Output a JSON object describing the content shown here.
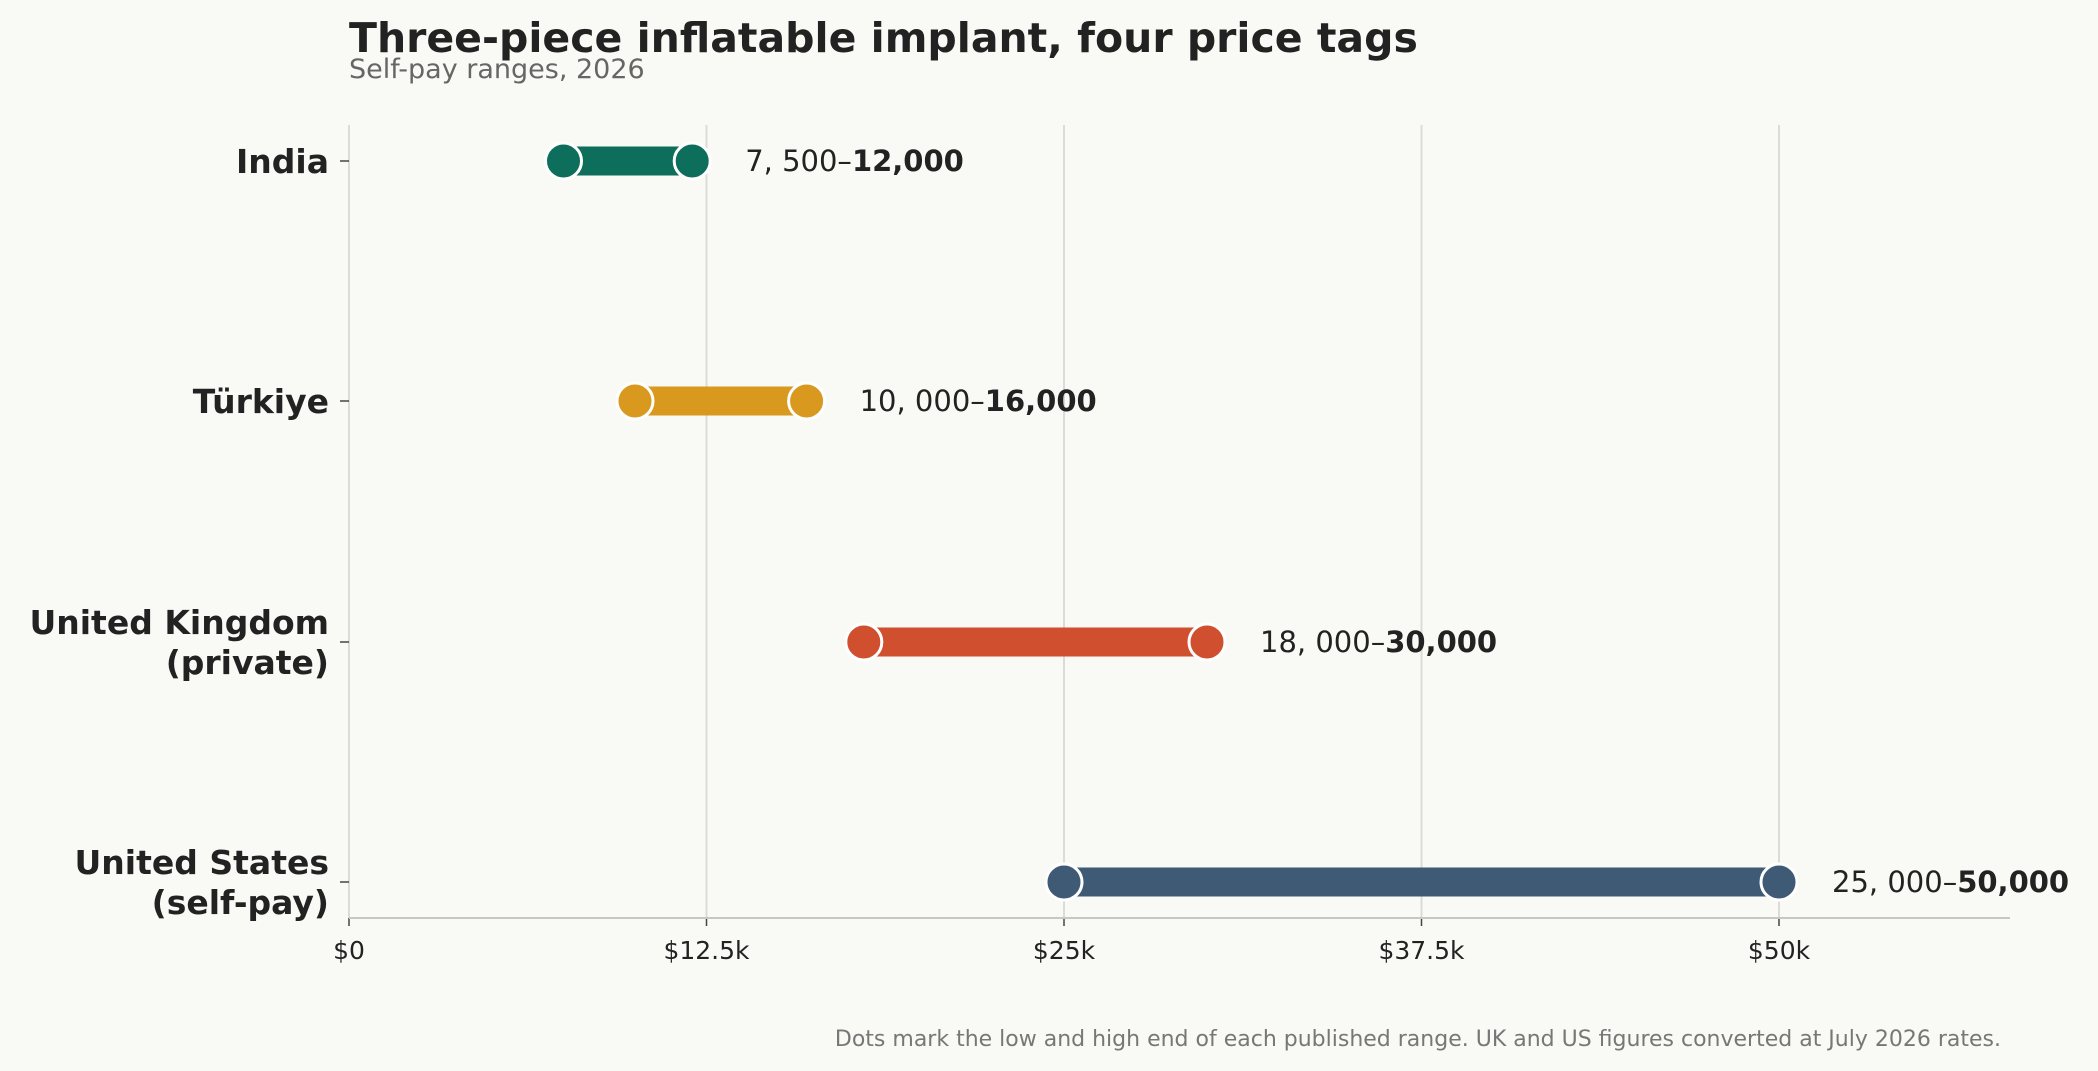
{
  "chart_data": {
    "type": "dumbbell",
    "title": "Three-piece inflatable implant, four price tags",
    "subtitle": "Self-pay ranges, 2026",
    "footnote": "Dots mark the low and high end of each published range. UK and US figures converted at July 2026 rates.",
    "xlim": [
      0,
      58000
    ],
    "xticks": [
      0,
      12500,
      25000,
      37500,
      50000
    ],
    "xtick_labels": [
      "$0",
      "$12.5k",
      "$25k",
      "$37.5k",
      "$50k"
    ],
    "grid": "vertical",
    "categories": [
      {
        "label": [
          "India"
        ],
        "low": 7500,
        "high": 12000,
        "low_label": "7, 500–",
        "high_label": "12,000",
        "color": "#0e6e5c"
      },
      {
        "label": [
          "Türkiye"
        ],
        "low": 10000,
        "high": 16000,
        "low_label": "10, 000–",
        "high_label": "16,000",
        "color": "#d9991e"
      },
      {
        "label": [
          "United Kingdom",
          "(private)"
        ],
        "low": 18000,
        "high": 30000,
        "low_label": "18, 000–",
        "high_label": "30,000",
        "color": "#d04f2e"
      },
      {
        "label": [
          "United States",
          "(self-pay)"
        ],
        "low": 25000,
        "high": 50000,
        "low_label": "25, 000–",
        "high_label": "50,000",
        "color": "#3e5a74"
      }
    ],
    "colors": {
      "background": "#f9f9f5",
      "grid": "#dcdcd7",
      "axis": "#c8c8c3",
      "marker_edge": "#ffffff"
    }
  }
}
